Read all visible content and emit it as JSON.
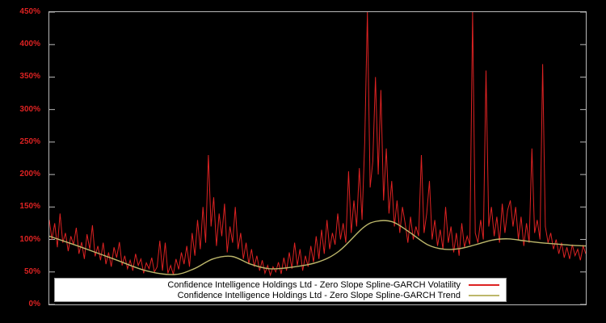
{
  "chart_data": {
    "type": "line",
    "title": "",
    "xlabel": "",
    "ylabel": "",
    "ylim": [
      0,
      450
    ],
    "grid": false,
    "background_color": "#000000",
    "frame_color": "#b9b9b9",
    "tick_label_color": "#dd2222",
    "x_axis_labels_visible": false,
    "ylabel_ticks": [
      "0%",
      "50%",
      "100%",
      "150%",
      "200%",
      "250%",
      "300%",
      "350%",
      "400%",
      "450%"
    ],
    "legend_position": "bottom-center",
    "series": [
      {
        "name": "Confidence Intelligence Holdings Ltd - Zero Slope Spline-GARCH Volatility",
        "color": "#dd2222",
        "style": "spiky-line",
        "unit": "percent",
        "values": [
          130,
          100,
          125,
          88,
          140,
          95,
          110,
          82,
          105,
          92,
          118,
          78,
          96,
          70,
          108,
          85,
          122,
          74,
          90,
          68,
          95,
          62,
          80,
          58,
          88,
          72,
          96,
          60,
          75,
          55,
          68,
          52,
          78,
          60,
          70,
          48,
          64,
          55,
          72,
          50,
          58,
          98,
          52,
          95,
          48,
          60,
          46,
          70,
          54,
          80,
          62,
          90,
          58,
          110,
          75,
          130,
          85,
          150,
          95,
          230,
          120,
          165,
          90,
          140,
          105,
          155,
          80,
          120,
          95,
          150,
          85,
          110,
          70,
          95,
          62,
          85,
          58,
          75,
          52,
          68,
          48,
          60,
          45,
          58,
          50,
          65,
          47,
          72,
          52,
          80,
          55,
          95,
          60,
          85,
          52,
          75,
          58,
          90,
          65,
          105,
          70,
          115,
          78,
          130,
          85,
          110,
          92,
          140,
          100,
          125,
          95,
          205,
          110,
          160,
          120,
          210,
          130,
          250,
          450,
          180,
          220,
          350,
          200,
          330,
          160,
          240,
          140,
          190,
          120,
          160,
          110,
          150,
          125,
          95,
          135,
          100,
          120,
          105,
          230,
          110,
          140,
          190,
          100,
          130,
          90,
          115,
          85,
          150,
          95,
          120,
          80,
          110,
          75,
          125,
          88,
          105,
          92,
          450,
          110,
          95,
          130,
          100,
          360,
          120,
          150,
          105,
          135,
          95,
          155,
          110,
          145,
          160,
          120,
          150,
          100,
          135,
          90,
          125,
          95,
          240,
          110,
          130,
          100,
          370,
          120,
          95,
          110,
          85,
          100,
          78,
          95,
          72,
          88,
          70,
          92,
          75,
          85,
          68,
          90,
          78
        ]
      },
      {
        "name": "Confidence Intelligence Holdings Ltd - Zero Slope Spline-GARCH Trend",
        "color": "#bdb76b",
        "style": "smooth-spline",
        "unit": "percent",
        "control_points": [
          [
            0.0,
            105
          ],
          [
            0.06,
            88
          ],
          [
            0.12,
            70
          ],
          [
            0.18,
            52
          ],
          [
            0.233,
            46
          ],
          [
            0.27,
            55
          ],
          [
            0.305,
            70
          ],
          [
            0.34,
            74
          ],
          [
            0.375,
            62
          ],
          [
            0.41,
            55
          ],
          [
            0.45,
            57
          ],
          [
            0.5,
            65
          ],
          [
            0.54,
            82
          ],
          [
            0.585,
            118
          ],
          [
            0.61,
            128
          ],
          [
            0.64,
            127
          ],
          [
            0.67,
            112
          ],
          [
            0.705,
            92
          ],
          [
            0.735,
            85
          ],
          [
            0.765,
            86
          ],
          [
            0.795,
            92
          ],
          [
            0.825,
            99
          ],
          [
            0.855,
            101
          ],
          [
            0.885,
            98
          ],
          [
            0.915,
            95
          ],
          [
            0.945,
            93
          ],
          [
            0.975,
            91
          ],
          [
            1.0,
            90
          ]
        ]
      }
    ]
  },
  "legend": {
    "background": "#ffffff",
    "text_color": "#000000",
    "entries": [
      {
        "label": "Confidence Intelligence Holdings Ltd - Zero Slope Spline-GARCH Volatility",
        "color": "#dd2222"
      },
      {
        "label": "Confidence Intelligence Holdings Ltd - Zero Slope Spline-GARCH Trend",
        "color": "#bdb76b"
      }
    ]
  }
}
